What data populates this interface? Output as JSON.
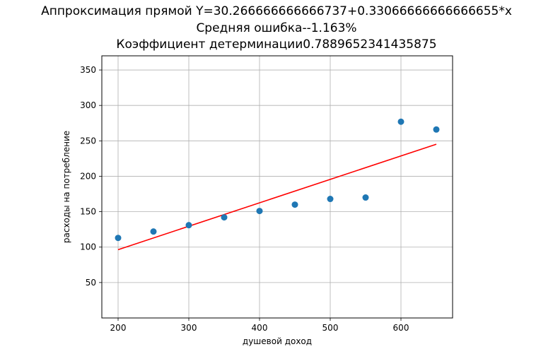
{
  "chart_data": {
    "type": "scatter",
    "title_lines": [
      "Аппроксимация прямой Y=30.266666666666737+0.33066666666666655*x",
      "Средняя ошибка--1.163%",
      "Коэффициент детерминации0.7889652341435875"
    ],
    "xlabel": "душевой доход",
    "ylabel": "расходы на потребление",
    "xlim": [
      177,
      673
    ],
    "ylim": [
      0,
      370
    ],
    "xticks": [
      200,
      300,
      400,
      500,
      600
    ],
    "yticks": [
      50,
      100,
      150,
      200,
      250,
      300,
      350
    ],
    "grid": true,
    "series": [
      {
        "kind": "scatter",
        "color": "#1f77b4",
        "points": [
          {
            "x": 200,
            "y": 113
          },
          {
            "x": 250,
            "y": 122
          },
          {
            "x": 300,
            "y": 131
          },
          {
            "x": 350,
            "y": 142
          },
          {
            "x": 400,
            "y": 151
          },
          {
            "x": 450,
            "y": 160
          },
          {
            "x": 500,
            "y": 168
          },
          {
            "x": 550,
            "y": 170
          },
          {
            "x": 600,
            "y": 277
          },
          {
            "x": 650,
            "y": 266
          }
        ]
      },
      {
        "kind": "line",
        "color": "#ff0000",
        "intercept": 30.266666666666737,
        "slope": 0.33066666666666655,
        "x_range": [
          200,
          650
        ]
      }
    ]
  }
}
